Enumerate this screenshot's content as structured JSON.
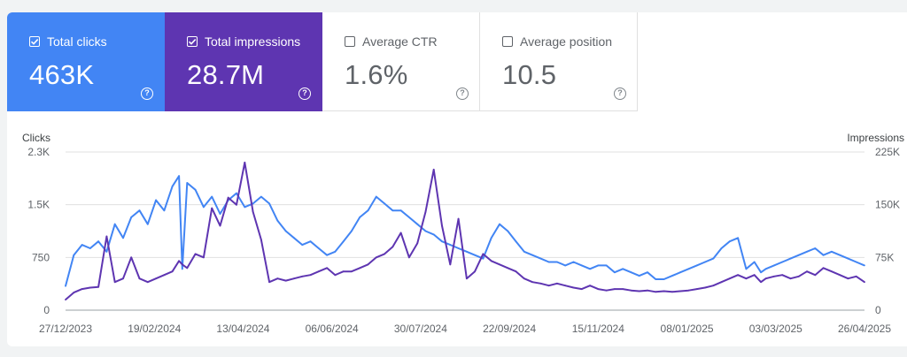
{
  "cards": [
    {
      "label": "Total clicks",
      "value": "463K",
      "checked": true,
      "color": "#4285f4"
    },
    {
      "label": "Total impressions",
      "value": "28.7M",
      "checked": true,
      "color": "#5e35b1"
    },
    {
      "label": "Average CTR",
      "value": "1.6%",
      "checked": false,
      "color": "#ffffff"
    },
    {
      "label": "Average position",
      "value": "10.5",
      "checked": false,
      "color": "#ffffff"
    }
  ],
  "help_glyph": "?",
  "chart_data": {
    "type": "line",
    "xlabel": "",
    "ylabel_left": "Clicks",
    "ylabel_right": "Impressions",
    "y_left_ticks": [
      "0",
      "750",
      "1.5K",
      "2.3K"
    ],
    "y_left_range": [
      0,
      2300
    ],
    "y_right_ticks": [
      "0",
      "75K",
      "150K",
      "225K"
    ],
    "y_right_range": [
      0,
      225000
    ],
    "x_range": [
      "2023-12-27",
      "2025-04-26"
    ],
    "x_ticks": [
      "27/12/2023",
      "19/02/2024",
      "13/04/2024",
      "06/06/2024",
      "30/07/2024",
      "22/09/2024",
      "15/11/2024",
      "08/01/2025",
      "03/03/2025",
      "26/04/2025"
    ],
    "grid": true,
    "series": [
      {
        "name": "Clicks",
        "axis": "left",
        "color": "#4285f4",
        "x": [
          "2023-12-27",
          "2024-01-01",
          "2024-01-06",
          "2024-01-11",
          "2024-01-16",
          "2024-01-21",
          "2024-01-26",
          "2024-01-31",
          "2024-02-05",
          "2024-02-10",
          "2024-02-15",
          "2024-02-20",
          "2024-02-25",
          "2024-03-01",
          "2024-03-05",
          "2024-03-07",
          "2024-03-10",
          "2024-03-15",
          "2024-03-20",
          "2024-03-25",
          "2024-03-30",
          "2024-04-04",
          "2024-04-09",
          "2024-04-14",
          "2024-04-19",
          "2024-04-24",
          "2024-04-29",
          "2024-05-04",
          "2024-05-09",
          "2024-05-14",
          "2024-05-19",
          "2024-05-24",
          "2024-05-29",
          "2024-06-03",
          "2024-06-08",
          "2024-06-13",
          "2024-06-18",
          "2024-06-23",
          "2024-06-28",
          "2024-07-03",
          "2024-07-08",
          "2024-07-13",
          "2024-07-18",
          "2024-07-23",
          "2024-07-28",
          "2024-08-02",
          "2024-08-07",
          "2024-08-12",
          "2024-08-17",
          "2024-08-22",
          "2024-08-27",
          "2024-09-01",
          "2024-09-06",
          "2024-09-11",
          "2024-09-16",
          "2024-09-21",
          "2024-09-26",
          "2024-10-01",
          "2024-10-06",
          "2024-10-11",
          "2024-10-16",
          "2024-10-21",
          "2024-10-26",
          "2024-10-31",
          "2024-11-05",
          "2024-11-10",
          "2024-11-15",
          "2024-11-20",
          "2024-11-25",
          "2024-11-30",
          "2024-12-05",
          "2024-12-10",
          "2024-12-15",
          "2024-12-20",
          "2024-12-25",
          "2024-12-30",
          "2025-01-04",
          "2025-01-09",
          "2025-01-14",
          "2025-01-19",
          "2025-01-24",
          "2025-01-29",
          "2025-02-03",
          "2025-02-08",
          "2025-02-13",
          "2025-02-18",
          "2025-02-22",
          "2025-02-25",
          "2025-03-02",
          "2025-03-07",
          "2025-03-12",
          "2025-03-17",
          "2025-03-22",
          "2025-03-27",
          "2025-04-01",
          "2025-04-06",
          "2025-04-11",
          "2025-04-16",
          "2025-04-21",
          "2025-04-26"
        ],
        "values": [
          350,
          800,
          950,
          900,
          1000,
          850,
          1250,
          1050,
          1350,
          1450,
          1250,
          1600,
          1450,
          1800,
          1950,
          600,
          1850,
          1750,
          1500,
          1650,
          1400,
          1600,
          1700,
          1500,
          1550,
          1650,
          1550,
          1300,
          1150,
          1050,
          950,
          1000,
          900,
          800,
          850,
          1000,
          1150,
          1350,
          1450,
          1650,
          1550,
          1450,
          1450,
          1350,
          1250,
          1150,
          1100,
          1000,
          950,
          900,
          850,
          800,
          750,
          1050,
          1250,
          1150,
          1000,
          850,
          800,
          750,
          700,
          700,
          650,
          700,
          650,
          600,
          650,
          650,
          550,
          600,
          550,
          500,
          550,
          450,
          450,
          500,
          550,
          600,
          650,
          700,
          750,
          900,
          1000,
          1050,
          600,
          700,
          550,
          600,
          650,
          700,
          750,
          800,
          850,
          900,
          800,
          850,
          800,
          750,
          700,
          650
        ]
      },
      {
        "name": "Impressions",
        "axis": "right",
        "color": "#5e35b1",
        "x": [
          "2023-12-27",
          "2024-01-01",
          "2024-01-06",
          "2024-01-11",
          "2024-01-16",
          "2024-01-21",
          "2024-01-26",
          "2024-01-31",
          "2024-02-05",
          "2024-02-10",
          "2024-02-15",
          "2024-02-20",
          "2024-02-25",
          "2024-03-01",
          "2024-03-05",
          "2024-03-07",
          "2024-03-10",
          "2024-03-15",
          "2024-03-20",
          "2024-03-25",
          "2024-03-30",
          "2024-04-04",
          "2024-04-09",
          "2024-04-14",
          "2024-04-19",
          "2024-04-24",
          "2024-04-29",
          "2024-05-04",
          "2024-05-09",
          "2024-05-14",
          "2024-05-19",
          "2024-05-24",
          "2024-05-29",
          "2024-06-03",
          "2024-06-08",
          "2024-06-13",
          "2024-06-18",
          "2024-06-23",
          "2024-06-28",
          "2024-07-03",
          "2024-07-08",
          "2024-07-13",
          "2024-07-18",
          "2024-07-23",
          "2024-07-28",
          "2024-08-02",
          "2024-08-07",
          "2024-08-12",
          "2024-08-17",
          "2024-08-22",
          "2024-08-27",
          "2024-09-01",
          "2024-09-06",
          "2024-09-11",
          "2024-09-16",
          "2024-09-21",
          "2024-09-26",
          "2024-10-01",
          "2024-10-06",
          "2024-10-11",
          "2024-10-16",
          "2024-10-21",
          "2024-10-26",
          "2024-10-31",
          "2024-11-05",
          "2024-11-10",
          "2024-11-15",
          "2024-11-20",
          "2024-11-25",
          "2024-11-30",
          "2024-12-05",
          "2024-12-10",
          "2024-12-15",
          "2024-12-20",
          "2024-12-25",
          "2024-12-30",
          "2025-01-04",
          "2025-01-09",
          "2025-01-14",
          "2025-01-19",
          "2025-01-24",
          "2025-01-29",
          "2025-02-03",
          "2025-02-08",
          "2025-02-13",
          "2025-02-18",
          "2025-02-22",
          "2025-02-25",
          "2025-03-02",
          "2025-03-07",
          "2025-03-12",
          "2025-03-17",
          "2025-03-22",
          "2025-03-27",
          "2025-04-01",
          "2025-04-06",
          "2025-04-11",
          "2025-04-16",
          "2025-04-21",
          "2025-04-26"
        ],
        "values": [
          15000,
          25000,
          30000,
          32000,
          33000,
          105000,
          40000,
          45000,
          75000,
          45000,
          40000,
          45000,
          50000,
          55000,
          70000,
          65000,
          60000,
          80000,
          75000,
          145000,
          120000,
          160000,
          150000,
          210000,
          140000,
          100000,
          40000,
          45000,
          42000,
          45000,
          48000,
          50000,
          55000,
          60000,
          50000,
          55000,
          55000,
          60000,
          65000,
          75000,
          80000,
          90000,
          110000,
          75000,
          95000,
          140000,
          200000,
          120000,
          65000,
          130000,
          45000,
          55000,
          80000,
          70000,
          65000,
          60000,
          55000,
          45000,
          40000,
          38000,
          35000,
          38000,
          35000,
          32000,
          30000,
          35000,
          30000,
          28000,
          30000,
          30000,
          28000,
          27000,
          28000,
          26000,
          27000,
          26000,
          27000,
          28000,
          30000,
          32000,
          35000,
          40000,
          45000,
          50000,
          45000,
          50000,
          40000,
          45000,
          48000,
          50000,
          45000,
          48000,
          55000,
          50000,
          60000,
          55000,
          50000,
          45000,
          48000,
          40000
        ]
      }
    ]
  }
}
